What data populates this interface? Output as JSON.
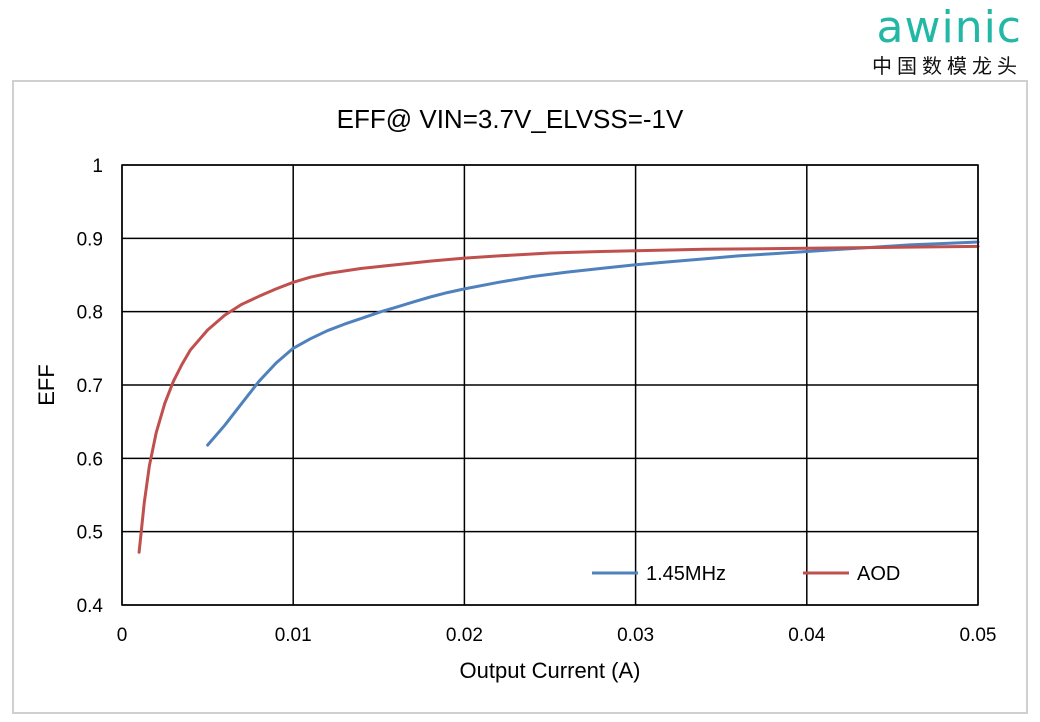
{
  "logo": {
    "word": "awinic",
    "tagline": "中国数模龙头"
  },
  "chart_data": {
    "type": "line",
    "title": "EFF@ VIN=3.7V_ELVSS=-1V",
    "xlabel": "Output Current (A)",
    "ylabel": "EFF",
    "xlim": [
      0,
      0.05
    ],
    "ylim": [
      0.4,
      1
    ],
    "xticks": [
      0,
      0.01,
      0.02,
      0.03,
      0.04,
      0.05
    ],
    "yticks": [
      0.4,
      0.5,
      0.6,
      0.7,
      0.8,
      0.9,
      1
    ],
    "xtick_labels": [
      "0",
      "0.01",
      "0.02",
      "0.03",
      "0.04",
      "0.05"
    ],
    "ytick_labels": [
      "0.4",
      "0.5",
      "0.6",
      "0.7",
      "0.8",
      "0.9",
      "1"
    ],
    "grid": true,
    "legend_position": "bottom-right",
    "series": [
      {
        "name": "1.45MHz",
        "color": "#4f81bd",
        "points": [
          [
            0.005,
            0.618
          ],
          [
            0.006,
            0.645
          ],
          [
            0.007,
            0.675
          ],
          [
            0.008,
            0.705
          ],
          [
            0.009,
            0.73
          ],
          [
            0.01,
            0.75
          ],
          [
            0.011,
            0.763
          ],
          [
            0.012,
            0.774
          ],
          [
            0.013,
            0.783
          ],
          [
            0.014,
            0.791
          ],
          [
            0.015,
            0.799
          ],
          [
            0.016,
            0.806
          ],
          [
            0.017,
            0.813
          ],
          [
            0.018,
            0.82
          ],
          [
            0.019,
            0.826
          ],
          [
            0.02,
            0.831
          ],
          [
            0.022,
            0.84
          ],
          [
            0.024,
            0.848
          ],
          [
            0.026,
            0.854
          ],
          [
            0.028,
            0.859
          ],
          [
            0.03,
            0.864
          ],
          [
            0.032,
            0.868
          ],
          [
            0.034,
            0.872
          ],
          [
            0.036,
            0.876
          ],
          [
            0.038,
            0.879
          ],
          [
            0.04,
            0.882
          ],
          [
            0.042,
            0.885
          ],
          [
            0.044,
            0.888
          ],
          [
            0.046,
            0.891
          ],
          [
            0.048,
            0.893
          ],
          [
            0.05,
            0.895
          ]
        ]
      },
      {
        "name": "AOD",
        "color": "#c0504d",
        "points": [
          [
            0.001,
            0.472
          ],
          [
            0.0013,
            0.54
          ],
          [
            0.0016,
            0.59
          ],
          [
            0.002,
            0.635
          ],
          [
            0.0025,
            0.675
          ],
          [
            0.003,
            0.705
          ],
          [
            0.0035,
            0.728
          ],
          [
            0.004,
            0.748
          ],
          [
            0.005,
            0.775
          ],
          [
            0.006,
            0.795
          ],
          [
            0.007,
            0.81
          ],
          [
            0.008,
            0.821
          ],
          [
            0.009,
            0.831
          ],
          [
            0.01,
            0.84
          ],
          [
            0.011,
            0.847
          ],
          [
            0.012,
            0.852
          ],
          [
            0.014,
            0.859
          ],
          [
            0.016,
            0.864
          ],
          [
            0.018,
            0.869
          ],
          [
            0.02,
            0.873
          ],
          [
            0.022,
            0.876
          ],
          [
            0.025,
            0.88
          ],
          [
            0.028,
            0.882
          ],
          [
            0.03,
            0.883
          ],
          [
            0.034,
            0.885
          ],
          [
            0.038,
            0.886
          ],
          [
            0.042,
            0.887
          ],
          [
            0.046,
            0.888
          ],
          [
            0.05,
            0.889
          ]
        ]
      }
    ]
  }
}
